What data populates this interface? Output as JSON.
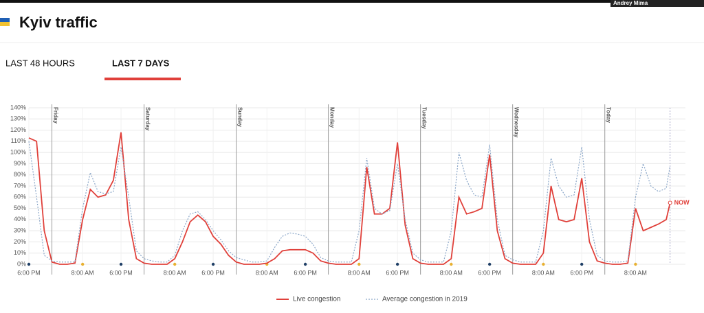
{
  "header": {
    "title": "Kyiv traffic",
    "user": "Andrey Mima"
  },
  "tabs": [
    "LAST 48 HOURS",
    "LAST 7 DAYS"
  ],
  "active_tab": 1,
  "chart_data": {
    "type": "line",
    "x": [
      0,
      2,
      4,
      6,
      8,
      10,
      12,
      14,
      16,
      18,
      20,
      22,
      24,
      26,
      28,
      30,
      32,
      34,
      36,
      38,
      40,
      42,
      44,
      46,
      48,
      50,
      52,
      54,
      56,
      58,
      60,
      62,
      64,
      66,
      68,
      70,
      72,
      74,
      76,
      78,
      80,
      82,
      84,
      86,
      88,
      90,
      92,
      94,
      96,
      98,
      100,
      102,
      104,
      106,
      108,
      110,
      112,
      114,
      116,
      118,
      120,
      122,
      124,
      126,
      128,
      130,
      132,
      134,
      136,
      138,
      140,
      142,
      144,
      146,
      148,
      150,
      152,
      154,
      156,
      158,
      160,
      162,
      164,
      166,
      167
    ],
    "series": [
      {
        "name": "Live congestion",
        "color": "#e0403a",
        "dash": false,
        "values": [
          113,
          110,
          30,
          2,
          0,
          0,
          1,
          40,
          67,
          60,
          62,
          75,
          118,
          40,
          5,
          1,
          0,
          0,
          0,
          5,
          20,
          38,
          44,
          38,
          25,
          18,
          8,
          2,
          0,
          0,
          0,
          1,
          5,
          12,
          13,
          13,
          13,
          10,
          3,
          1,
          0,
          0,
          0,
          5,
          87,
          45,
          45,
          50,
          109,
          35,
          5,
          1,
          0,
          0,
          0,
          5,
          60,
          45,
          47,
          50,
          98,
          30,
          5,
          1,
          0,
          0,
          0,
          10,
          70,
          40,
          38,
          40,
          77,
          20,
          3,
          1,
          0,
          0,
          1,
          50,
          30,
          33,
          36,
          40,
          55
        ]
      },
      {
        "name": "Average congestion in 2019",
        "color": "#8aa6c8",
        "dash": true,
        "values": [
          110,
          60,
          8,
          3,
          2,
          2,
          2,
          50,
          82,
          65,
          63,
          65,
          105,
          60,
          12,
          5,
          3,
          2,
          2,
          8,
          30,
          45,
          47,
          40,
          30,
          22,
          12,
          6,
          4,
          2,
          2,
          3,
          15,
          25,
          28,
          27,
          25,
          18,
          6,
          3,
          2,
          2,
          2,
          30,
          95,
          50,
          45,
          48,
          90,
          40,
          10,
          4,
          2,
          2,
          2,
          30,
          100,
          75,
          62,
          60,
          107,
          40,
          8,
          4,
          2,
          2,
          2,
          30,
          95,
          70,
          60,
          62,
          105,
          40,
          8,
          3,
          2,
          2,
          3,
          60,
          90,
          70,
          65,
          68,
          88
        ]
      }
    ],
    "xlim": [
      0,
      171
    ],
    "xticks": [
      {
        "value": 0,
        "label": "6:00 PM"
      },
      {
        "value": 14,
        "label": "8:00 AM"
      },
      {
        "value": 24,
        "label": "6:00 PM"
      },
      {
        "value": 38,
        "label": "8:00 AM"
      },
      {
        "value": 48,
        "label": "6:00 PM"
      },
      {
        "value": 62,
        "label": "8:00 AM"
      },
      {
        "value": 72,
        "label": "6:00 PM"
      },
      {
        "value": 86,
        "label": "8:00 AM"
      },
      {
        "value": 96,
        "label": "6:00 PM"
      },
      {
        "value": 110,
        "label": "8:00 AM"
      },
      {
        "value": 120,
        "label": "6:00 PM"
      },
      {
        "value": 134,
        "label": "8:00 AM"
      },
      {
        "value": 144,
        "label": "6:00 PM"
      },
      {
        "value": 158,
        "label": "8:00 AM"
      }
    ],
    "xtick_dot_colors": [
      "#1f3f66",
      "#e8b030",
      "#1f3f66",
      "#e8b030",
      "#1f3f66",
      "#e8b030",
      "#1f3f66",
      "#e8b030",
      "#1f3f66",
      "#e8b030",
      "#1f3f66",
      "#e8b030",
      "#1f3f66",
      "#e8b030"
    ],
    "day_markers": [
      {
        "value": 6,
        "label": "Friday"
      },
      {
        "value": 30,
        "label": "Saturday"
      },
      {
        "value": 54,
        "label": "Sunday"
      },
      {
        "value": 78,
        "label": "Monday"
      },
      {
        "value": 102,
        "label": "Tuesday"
      },
      {
        "value": 126,
        "label": "Wednesday"
      },
      {
        "value": 150,
        "label": "Today"
      }
    ],
    "ylim": [
      0,
      140
    ],
    "yticks": [
      {
        "value": 0,
        "label": "0%"
      },
      {
        "value": 10,
        "label": "10%"
      },
      {
        "value": 20,
        "label": "20%"
      },
      {
        "value": 30,
        "label": "30%"
      },
      {
        "value": 40,
        "label": "40%"
      },
      {
        "value": 50,
        "label": "50%"
      },
      {
        "value": 60,
        "label": "60%"
      },
      {
        "value": 70,
        "label": "70%"
      },
      {
        "value": 80,
        "label": "80%"
      },
      {
        "value": 90,
        "label": "90%"
      },
      {
        "value": 100,
        "label": "100%"
      },
      {
        "value": 110,
        "label": "110%"
      },
      {
        "value": 120,
        "label": "120%"
      },
      {
        "value": 130,
        "label": "130%"
      },
      {
        "value": 140,
        "label": "140%"
      }
    ],
    "grid": true,
    "legend": "bottom",
    "annotations": [
      {
        "text": "NOW"
      }
    ]
  }
}
